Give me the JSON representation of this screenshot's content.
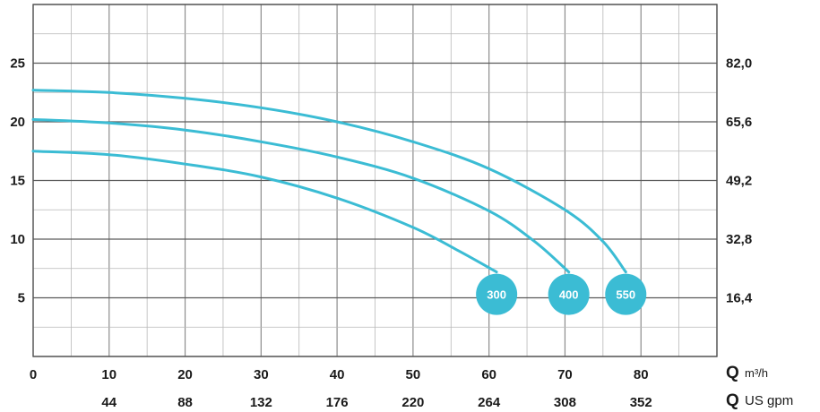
{
  "chart_data": {
    "type": "line",
    "title": "",
    "xlabel": "",
    "ylabel": "",
    "xlim": [
      0,
      90
    ],
    "ylim": [
      0,
      30
    ],
    "grid": true,
    "x_ticks": [
      "0",
      "10",
      "20",
      "30",
      "40",
      "50",
      "60",
      "70",
      "80"
    ],
    "x2_ticks": [
      "44",
      "88",
      "132",
      "176",
      "220",
      "264",
      "308",
      "352"
    ],
    "y_ticks": [
      "5",
      "10",
      "15",
      "20",
      "25"
    ],
    "y2_ticks": [
      "16,4",
      "32,8",
      "49,2",
      "65,6",
      "82,0"
    ],
    "x_unit": {
      "symbol": "Q",
      "text": "m³/h"
    },
    "x2_unit": {
      "symbol": "Q",
      "text": "US gpm"
    },
    "series_color": "#3bbcd4",
    "series": [
      {
        "label": "300",
        "points": [
          [
            0,
            17.5
          ],
          [
            10,
            17.2
          ],
          [
            20,
            16.4
          ],
          [
            30,
            15.3
          ],
          [
            40,
            13.5
          ],
          [
            50,
            11.0
          ],
          [
            56,
            9.0
          ],
          [
            61,
            7.2
          ]
        ]
      },
      {
        "label": "400",
        "points": [
          [
            0,
            20.2
          ],
          [
            10,
            19.9
          ],
          [
            20,
            19.3
          ],
          [
            30,
            18.3
          ],
          [
            40,
            17.0
          ],
          [
            50,
            15.2
          ],
          [
            60,
            12.4
          ],
          [
            66,
            9.8
          ],
          [
            70.5,
            7.2
          ]
        ]
      },
      {
        "label": "550",
        "points": [
          [
            0,
            22.7
          ],
          [
            10,
            22.5
          ],
          [
            20,
            22.0
          ],
          [
            30,
            21.2
          ],
          [
            40,
            20.0
          ],
          [
            50,
            18.3
          ],
          [
            60,
            16.0
          ],
          [
            70,
            12.5
          ],
          [
            75,
            9.8
          ],
          [
            78,
            7.2
          ]
        ]
      }
    ],
    "badges": [
      {
        "label": "300",
        "x": 61,
        "y": 5.3
      },
      {
        "label": "400",
        "x": 70.5,
        "y": 5.3
      },
      {
        "label": "550",
        "x": 78,
        "y": 5.3
      }
    ]
  }
}
